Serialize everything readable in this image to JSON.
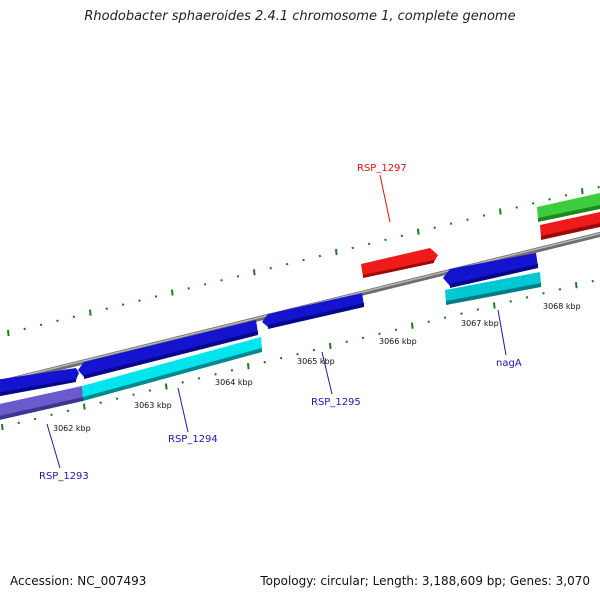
{
  "title": "Rhodobacter sphaeroides 2.4.1 chromosome 1, complete genome",
  "accession_label": "Accession: NC_007493",
  "summary_label": "Topology: circular; Length: 3,188,609 bp; Genes: 3,070",
  "colors": {
    "backbone": "#8c8c8c",
    "ticks": "#1f7a1f",
    "label_blue": "#1a1aa8",
    "label_red": "#e01010"
  },
  "scale_ticks": [
    {
      "label": "3062 kbp",
      "kbp": 3062
    },
    {
      "label": "3063 kbp",
      "kbp": 3063
    },
    {
      "label": "3064 kbp",
      "kbp": 3064
    },
    {
      "label": "3065 kbp",
      "kbp": 3065
    },
    {
      "label": "3066 kbp",
      "kbp": 3066
    },
    {
      "label": "3067 kbp",
      "kbp": 3067
    },
    {
      "label": "3068 kbp",
      "kbp": 3068
    }
  ],
  "features": [
    {
      "name": "rsp1293-gene",
      "color": "#1414d0",
      "strand": "forward-outer",
      "start_kbp": 3061.35,
      "end_kbp": 3062.35
    },
    {
      "name": "rsp1293-cds",
      "color": "#6a5acd",
      "strand": "inner",
      "start_kbp": 3061.35,
      "end_kbp": 3062.4
    },
    {
      "name": "rsp1294-gene",
      "color": "#1414d0",
      "strand": "reverse-outer",
      "start_kbp": 3062.4,
      "end_kbp": 3064.2
    },
    {
      "name": "rsp1294-cds",
      "color": "#00e5ee",
      "strand": "inner",
      "start_kbp": 3062.4,
      "end_kbp": 3064.2
    },
    {
      "name": "rsp1295-gene",
      "color": "#1414d0",
      "strand": "reverse-outer",
      "start_kbp": 3064.25,
      "end_kbp": 3065.3
    },
    {
      "name": "rsp1297-gene",
      "color": "#e81010",
      "strand": "forward-outer",
      "start_kbp": 3066.2,
      "end_kbp": 3066.95
    },
    {
      "name": "naga-gene",
      "color": "#1414d0",
      "strand": "reverse-outer",
      "start_kbp": 3067.05,
      "end_kbp": 3068.0
    },
    {
      "name": "naga-cds",
      "color": "#00c8d2",
      "strand": "inner",
      "start_kbp": 3067.05,
      "end_kbp": 3068.0
    },
    {
      "name": "edge-green-gene",
      "color": "#3ccc3c",
      "strand": "outer-far",
      "start_kbp": 3068.0,
      "end_kbp": 3068.7
    },
    {
      "name": "edge-red-gene",
      "color": "#e81010",
      "strand": "outer-near",
      "start_kbp": 3068.0,
      "end_kbp": 3068.7
    }
  ],
  "gene_labels": [
    {
      "name": "gene-label-rsp1293",
      "text": "RSP_1293",
      "color": "#1a1aa8"
    },
    {
      "name": "gene-label-rsp1294",
      "text": "RSP_1294",
      "color": "#1a1aa8"
    },
    {
      "name": "gene-label-rsp1295",
      "text": "RSP_1295",
      "color": "#1a1aa8"
    },
    {
      "name": "gene-label-rsp1297",
      "text": "RSP_1297",
      "color": "#e01010"
    },
    {
      "name": "gene-label-naga",
      "text": "nagA",
      "color": "#1a1aa8"
    }
  ]
}
